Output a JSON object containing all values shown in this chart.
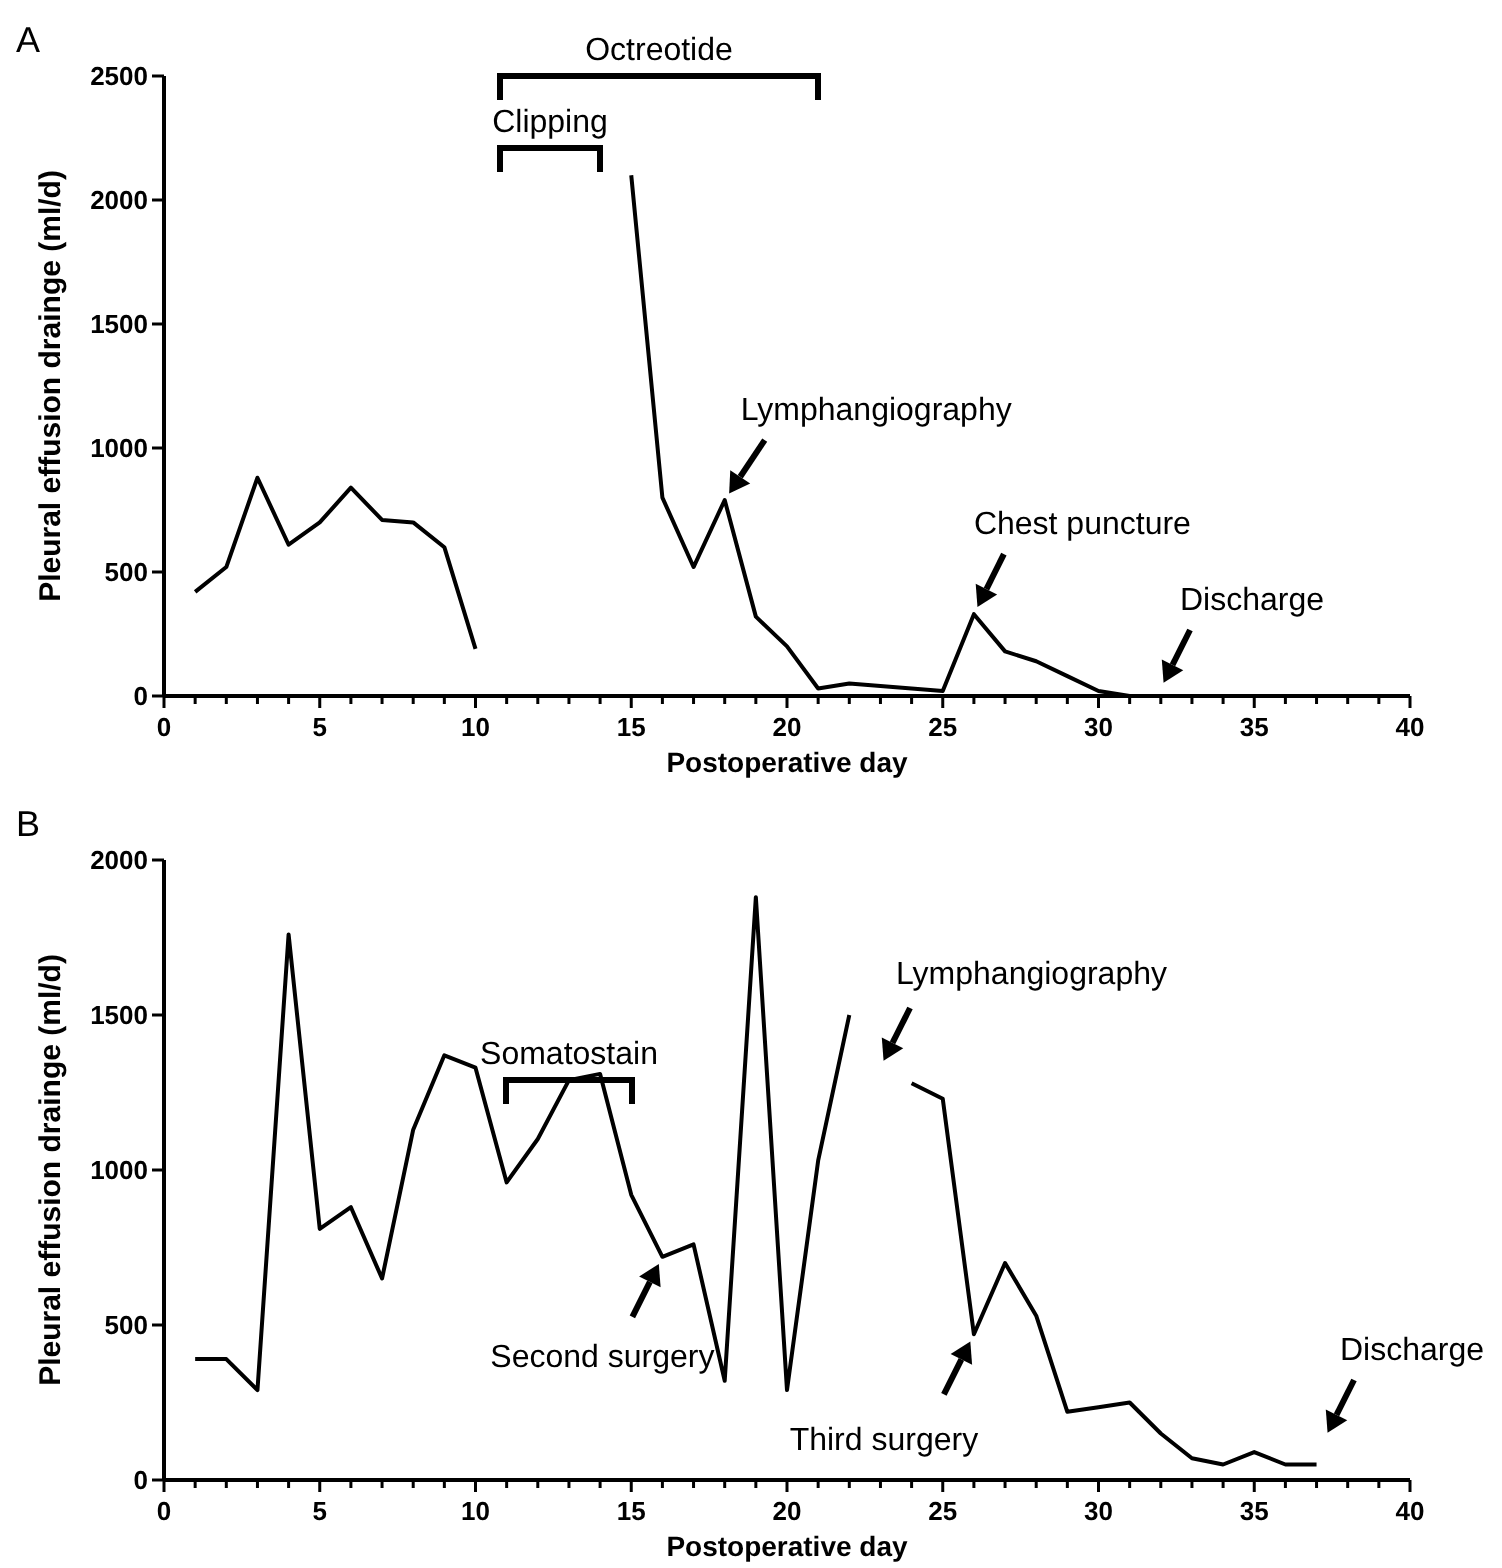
{
  "chart_data": [
    {
      "type": "line",
      "title": "A",
      "xlabel": "Postoperative day",
      "ylabel": "Pleural effusion drainge (ml/d)",
      "x": [
        1,
        2,
        3,
        4,
        5,
        6,
        7,
        8,
        9,
        10,
        11,
        12,
        13,
        14,
        15,
        16,
        17,
        18,
        19,
        20,
        21,
        22,
        23,
        24,
        25,
        26,
        27,
        28,
        29,
        30,
        31
      ],
      "series": [
        {
          "color": "#000000",
          "values": [
            420,
            520,
            880,
            610,
            700,
            840,
            710,
            700,
            600,
            190,
            null,
            null,
            null,
            null,
            2100,
            800,
            520,
            790,
            320,
            200,
            30,
            50,
            40,
            30,
            20,
            330,
            180,
            140,
            80,
            20,
            0
          ]
        }
      ],
      "xlim": [
        0,
        40
      ],
      "ylim": [
        0,
        2500
      ],
      "xticks": [
        0,
        {
          "value": 1,
          "label": null
        },
        {
          "value": 2,
          "label": null
        },
        {
          "value": 3,
          "label": null
        },
        {
          "value": 4,
          "label": null
        },
        5,
        {
          "value": 6,
          "label": null
        },
        {
          "value": 7,
          "label": null
        },
        {
          "value": 8,
          "label": null
        },
        {
          "value": 9,
          "label": null
        },
        10,
        {
          "value": 11,
          "label": null
        },
        {
          "value": 12,
          "label": null
        },
        {
          "value": 13,
          "label": null
        },
        {
          "value": 14,
          "label": null
        },
        15,
        {
          "value": 16,
          "label": null
        },
        {
          "value": 17,
          "label": null
        },
        {
          "value": 18,
          "label": null
        },
        {
          "value": 19,
          "label": null
        },
        20,
        {
          "value": 21,
          "label": null
        },
        {
          "value": 22,
          "label": null
        },
        {
          "value": 23,
          "label": null
        },
        {
          "value": 24,
          "label": null
        },
        25,
        {
          "value": 26,
          "label": null
        },
        {
          "value": 27,
          "label": null
        },
        {
          "value": 28,
          "label": null
        },
        {
          "value": 29,
          "label": null
        },
        30,
        {
          "value": 31,
          "label": null
        },
        {
          "value": 32,
          "label": null
        },
        {
          "value": 33,
          "label": null
        },
        {
          "value": 34,
          "label": null
        },
        35,
        {
          "value": 36,
          "label": null
        },
        {
          "value": 37,
          "label": null
        },
        {
          "value": 38,
          "label": null
        },
        {
          "value": 39,
          "label": null
        },
        40
      ],
      "yticks": [
        0,
        500,
        1000,
        1500,
        2000,
        2500
      ],
      "annotations": [
        "Octreotide",
        "Clipping",
        {
          "text": "Lymphangiography",
          "x": 18,
          "y": 790
        },
        {
          "text": "Chest puncture",
          "x": 26,
          "y": 330
        },
        "Discharge"
      ],
      "marker": "none",
      "line_style": "solid",
      "grid": false
    },
    {
      "type": "line",
      "title": "B",
      "xlabel": "Postoperative day",
      "ylabel": "Pleural effusion drainge (ml/d)",
      "x": [
        1,
        2,
        3,
        4,
        5,
        6,
        7,
        8,
        9,
        10,
        11,
        12,
        13,
        14,
        15,
        16,
        17,
        18,
        19,
        20,
        21,
        22,
        23,
        24,
        25,
        26,
        27,
        28,
        29,
        30,
        31,
        32,
        33,
        34,
        35,
        36,
        37
      ],
      "series": [
        {
          "color": "#000000",
          "values": [
            390,
            390,
            290,
            1760,
            810,
            880,
            650,
            1130,
            1370,
            1330,
            960,
            1100,
            1290,
            1310,
            920,
            720,
            760,
            320,
            1880,
            290,
            1030,
            1500,
            null,
            1280,
            1230,
            470,
            700,
            530,
            220,
            235,
            250,
            150,
            70,
            50,
            90,
            50,
            50
          ]
        }
      ],
      "xlim": [
        0,
        40
      ],
      "ylim": [
        0,
        2000
      ],
      "xticks": [
        0,
        {
          "value": 1,
          "label": null
        },
        {
          "value": 2,
          "label": null
        },
        {
          "value": 3,
          "label": null
        },
        {
          "value": 4,
          "label": null
        },
        5,
        {
          "value": 6,
          "label": null
        },
        {
          "value": 7,
          "label": null
        },
        {
          "value": 8,
          "label": null
        },
        {
          "value": 9,
          "label": null
        },
        10,
        {
          "value": 11,
          "label": null
        },
        {
          "value": 12,
          "label": null
        },
        {
          "value": 13,
          "label": null
        },
        {
          "value": 14,
          "label": null
        },
        15,
        {
          "value": 16,
          "label": null
        },
        {
          "value": 17,
          "label": null
        },
        {
          "value": 18,
          "label": null
        },
        {
          "value": 19,
          "label": null
        },
        20,
        {
          "value": 21,
          "label": null
        },
        {
          "value": 22,
          "label": null
        },
        {
          "value": 23,
          "label": null
        },
        {
          "value": 24,
          "label": null
        },
        25,
        {
          "value": 26,
          "label": null
        },
        {
          "value": 27,
          "label": null
        },
        {
          "value": 28,
          "label": null
        },
        {
          "value": 29,
          "label": null
        },
        30,
        {
          "value": 31,
          "label": null
        },
        {
          "value": 32,
          "label": null
        },
        {
          "value": 33,
          "label": null
        },
        {
          "value": 34,
          "label": null
        },
        35,
        {
          "value": 36,
          "label": null
        },
        {
          "value": 37,
          "label": null
        },
        {
          "value": 38,
          "label": null
        },
        {
          "value": 39,
          "label": null
        },
        40
      ],
      "yticks": [
        0,
        500,
        1000,
        1500,
        2000
      ],
      "annotations": [
        "Somatostain",
        {
          "text": "Second surgery",
          "x": 16,
          "y": 720
        },
        "Lymphangiography",
        {
          "text": "Third surgery",
          "x": 26,
          "y": 470
        },
        "Discharge"
      ],
      "marker": "none",
      "line_style": "solid",
      "grid": false
    }
  ]
}
